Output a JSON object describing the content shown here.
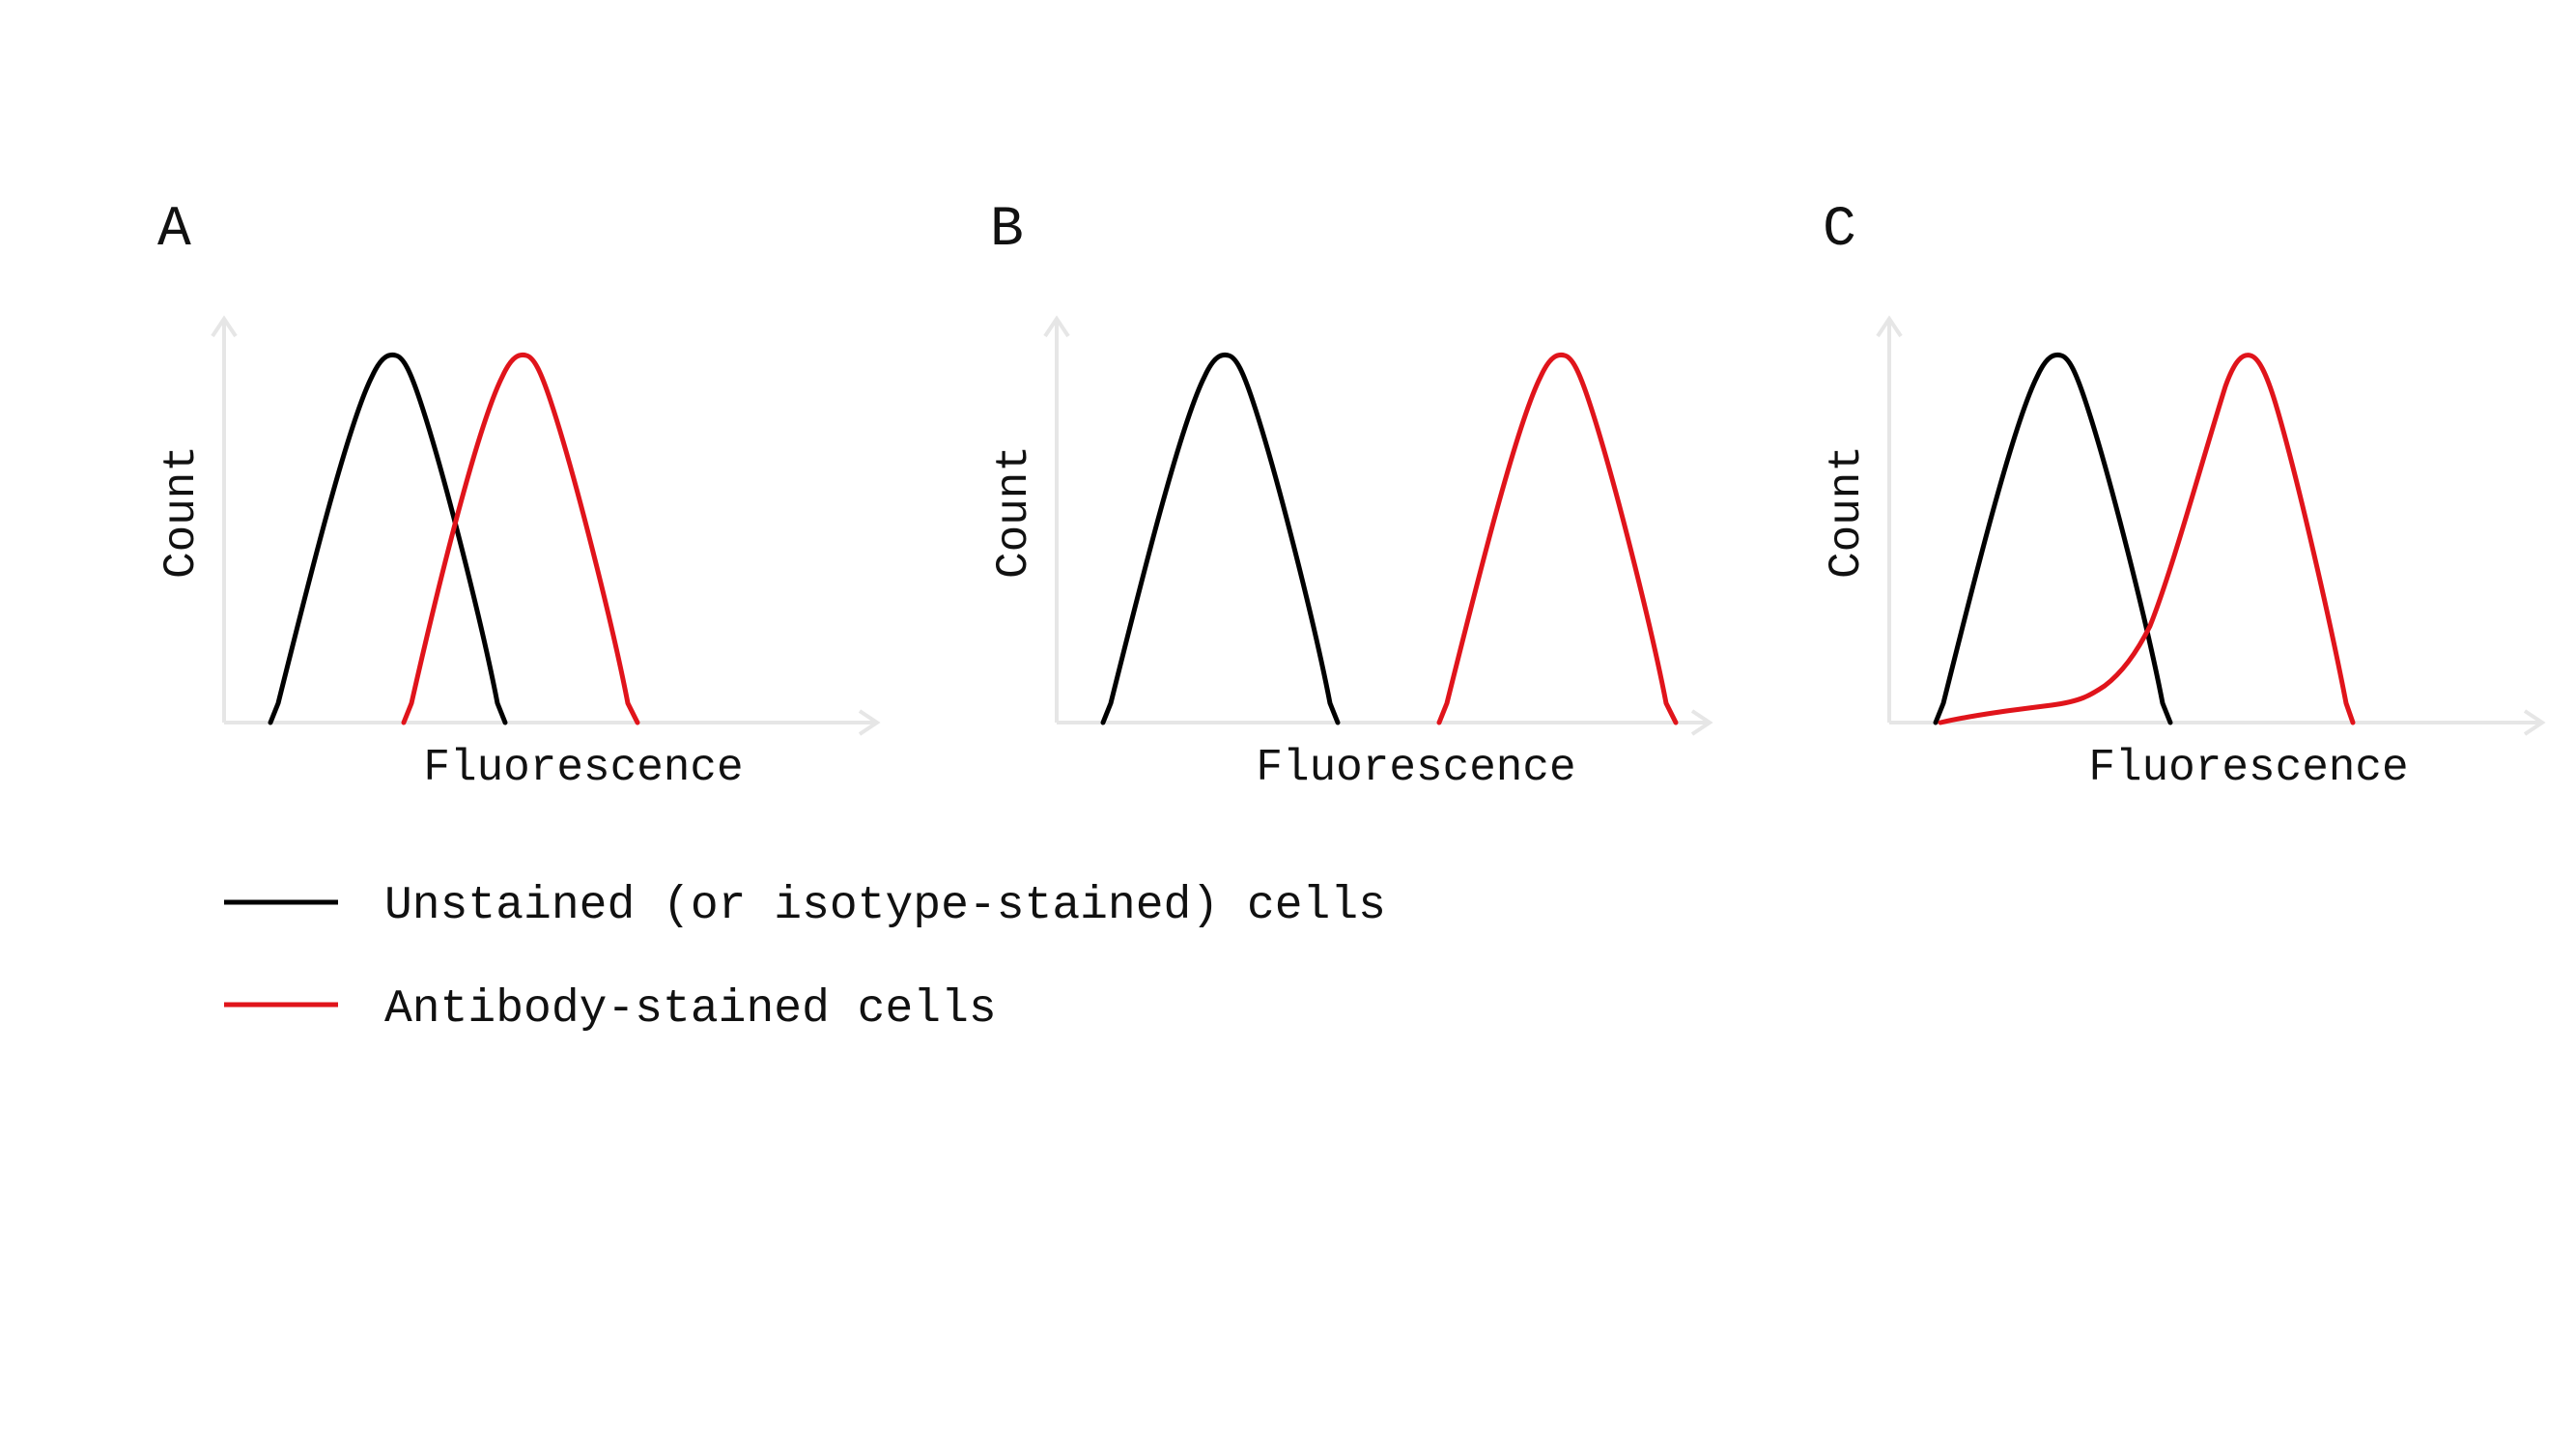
{
  "panels": [
    {
      "letter": "A",
      "xlabel": "Fluorescence",
      "ylabel": "Count"
    },
    {
      "letter": "B",
      "xlabel": "Fluorescence",
      "ylabel": "Count"
    },
    {
      "letter": "C",
      "xlabel": "Fluorescence",
      "ylabel": "Count"
    }
  ],
  "legend": [
    {
      "label": "Unstained (or isotype-stained) cells",
      "color": "#000000"
    },
    {
      "label": "Antibody-stained cells",
      "color": "#e0141b"
    }
  ],
  "colors": {
    "unstained": "#000000",
    "stained": "#e0141b",
    "axis": "#e6e6e6"
  }
}
